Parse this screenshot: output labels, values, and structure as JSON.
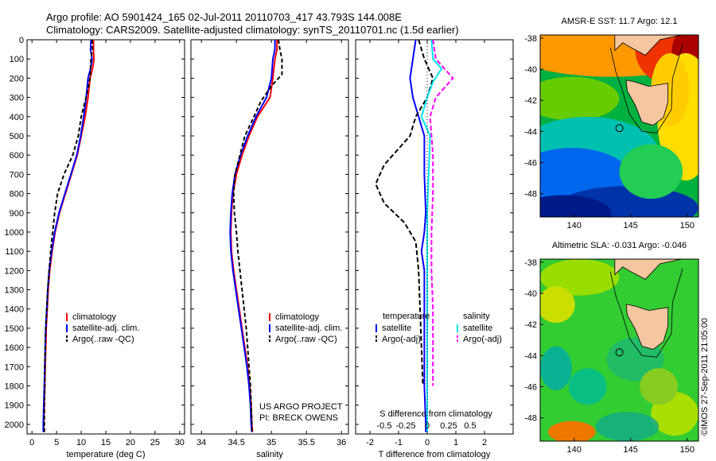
{
  "header": {
    "line1": "Argo profile: AO 5901424_165 02-Jul-2011 20110703_417 43.793S 144.008E",
    "line2": "Climatology: CARS2009. Satellite-adjusted climatology: synTS_20110701.nc (1.5d earlier)"
  },
  "credit": "©IMOS 27-Sep-2011 21:05:00",
  "colors": {
    "climatology": "#ff0000",
    "satellite": "#0000ff",
    "argo": "#000000",
    "salinity_satellite": "#00e5ee",
    "salinity_argo": "#ff00ff"
  },
  "chart_data": [
    {
      "type": "line",
      "id": "temperature",
      "xlabel": "temperature (deg C)",
      "ylabel": "",
      "xlim": [
        -1,
        31
      ],
      "xticks": [
        0,
        5,
        10,
        15,
        20,
        25,
        30
      ],
      "ylim": [
        2050,
        0
      ],
      "yticks": [
        0,
        100,
        200,
        300,
        400,
        500,
        600,
        700,
        800,
        900,
        1000,
        1100,
        1200,
        1300,
        1400,
        1500,
        1600,
        1700,
        1800,
        1900,
        2000
      ],
      "legend": [
        "climatology",
        "satellite-adj. clim.",
        "Argo(..raw -QC)"
      ],
      "series": [
        {
          "name": "climatology",
          "color": "#ff0000",
          "dash": "",
          "points": [
            [
              12.5,
              0
            ],
            [
              12.5,
              50
            ],
            [
              12.6,
              100
            ],
            [
              12.3,
              150
            ],
            [
              11.8,
              200
            ],
            [
              11.4,
              300
            ],
            [
              10.8,
              400
            ],
            [
              10.0,
              500
            ],
            [
              9.2,
              600
            ],
            [
              8.0,
              700
            ],
            [
              6.8,
              800
            ],
            [
              5.6,
              900
            ],
            [
              4.7,
              1000
            ],
            [
              4.1,
              1100
            ],
            [
              3.6,
              1200
            ],
            [
              3.3,
              1300
            ],
            [
              3.1,
              1400
            ],
            [
              2.9,
              1500
            ],
            [
              2.8,
              1600
            ],
            [
              2.7,
              1700
            ],
            [
              2.6,
              1800
            ],
            [
              2.5,
              1900
            ],
            [
              2.4,
              2000
            ],
            [
              2.4,
              2040
            ]
          ]
        },
        {
          "name": "satellite-adj. clim.",
          "color": "#0000ff",
          "dash": "",
          "points": [
            [
              12.0,
              0
            ],
            [
              11.9,
              50
            ],
            [
              12.2,
              100
            ],
            [
              11.9,
              150
            ],
            [
              11.4,
              200
            ],
            [
              11.0,
              300
            ],
            [
              10.5,
              400
            ],
            [
              9.9,
              500
            ],
            [
              9.1,
              600
            ],
            [
              7.9,
              700
            ],
            [
              6.7,
              800
            ],
            [
              5.5,
              900
            ],
            [
              4.6,
              1000
            ],
            [
              4.0,
              1100
            ],
            [
              3.5,
              1200
            ],
            [
              3.2,
              1300
            ],
            [
              3.0,
              1400
            ],
            [
              2.8,
              1500
            ],
            [
              2.7,
              1600
            ],
            [
              2.6,
              1700
            ],
            [
              2.5,
              1800
            ],
            [
              2.4,
              1900
            ],
            [
              2.3,
              2000
            ],
            [
              2.3,
              2040
            ]
          ]
        },
        {
          "name": "Argo(..raw -QC)",
          "color": "#000000",
          "dash": "5,3",
          "points": [
            [
              12.2,
              0
            ],
            [
              12.3,
              50
            ],
            [
              12.0,
              100
            ],
            [
              11.8,
              200
            ],
            [
              11.0,
              300
            ],
            [
              10.0,
              400
            ],
            [
              9.4,
              500
            ],
            [
              8.3,
              600
            ],
            [
              6.5,
              700
            ],
            [
              5.2,
              800
            ],
            [
              4.6,
              900
            ],
            [
              4.2,
              1000
            ],
            [
              3.8,
              1100
            ],
            [
              3.5,
              1200
            ],
            [
              3.2,
              1300
            ],
            [
              3.0,
              1400
            ],
            [
              2.8,
              1500
            ],
            [
              2.7,
              1600
            ],
            [
              2.6,
              1700
            ],
            [
              2.6,
              1800
            ],
            [
              2.5,
              1900
            ],
            [
              2.5,
              2000
            ],
            [
              2.5,
              2040
            ]
          ]
        }
      ]
    },
    {
      "type": "line",
      "id": "salinity",
      "xlabel": "salinity",
      "ylabel": "",
      "xlim": [
        33.85,
        36.1
      ],
      "xticks": [
        34,
        34.5,
        35,
        35.5,
        36
      ],
      "ylim": [
        2050,
        0
      ],
      "legend": [
        "climatology",
        "satellite-adj. clim.",
        "Argo(..raw -QC)"
      ],
      "annotation": [
        "US ARGO PROJECT",
        "PI: BRECK OWENS"
      ],
      "series": [
        {
          "name": "climatology",
          "color": "#ff0000",
          "dash": "",
          "points": [
            [
              35.08,
              0
            ],
            [
              35.08,
              50
            ],
            [
              35.05,
              100
            ],
            [
              35.02,
              200
            ],
            [
              34.98,
              300
            ],
            [
              34.8,
              400
            ],
            [
              34.68,
              500
            ],
            [
              34.58,
              600
            ],
            [
              34.5,
              700
            ],
            [
              34.45,
              800
            ],
            [
              34.43,
              900
            ],
            [
              34.42,
              1000
            ],
            [
              34.43,
              1100
            ],
            [
              34.46,
              1200
            ],
            [
              34.5,
              1300
            ],
            [
              34.54,
              1400
            ],
            [
              34.58,
              1500
            ],
            [
              34.62,
              1600
            ],
            [
              34.66,
              1700
            ],
            [
              34.69,
              1800
            ],
            [
              34.71,
              1900
            ],
            [
              34.72,
              2000
            ],
            [
              34.73,
              2040
            ]
          ]
        },
        {
          "name": "satellite-adj. clim.",
          "color": "#0000ff",
          "dash": "",
          "points": [
            [
              35.05,
              0
            ],
            [
              35.05,
              50
            ],
            [
              35.02,
              100
            ],
            [
              35.0,
              200
            ],
            [
              34.93,
              300
            ],
            [
              34.78,
              400
            ],
            [
              34.66,
              500
            ],
            [
              34.56,
              600
            ],
            [
              34.48,
              700
            ],
            [
              34.44,
              800
            ],
            [
              34.42,
              900
            ],
            [
              34.41,
              1000
            ],
            [
              34.42,
              1100
            ],
            [
              34.45,
              1200
            ],
            [
              34.49,
              1300
            ],
            [
              34.53,
              1400
            ],
            [
              34.57,
              1500
            ],
            [
              34.61,
              1600
            ],
            [
              34.65,
              1700
            ],
            [
              34.68,
              1800
            ],
            [
              34.7,
              1900
            ],
            [
              34.71,
              2000
            ],
            [
              34.72,
              2040
            ]
          ]
        },
        {
          "name": "Argo(..raw -QC)",
          "color": "#000000",
          "dash": "5,3",
          "points": [
            [
              35.1,
              0
            ],
            [
              35.12,
              50
            ],
            [
              35.15,
              100
            ],
            [
              35.15,
              180
            ],
            [
              35.0,
              240
            ],
            [
              34.85,
              320
            ],
            [
              34.75,
              400
            ],
            [
              34.62,
              500
            ],
            [
              34.55,
              600
            ],
            [
              34.48,
              700
            ],
            [
              34.46,
              800
            ],
            [
              34.47,
              900
            ],
            [
              34.5,
              1000
            ],
            [
              34.52,
              1100
            ],
            [
              34.55,
              1200
            ],
            [
              34.58,
              1300
            ],
            [
              34.61,
              1400
            ],
            [
              34.64,
              1500
            ],
            [
              34.66,
              1600
            ],
            [
              34.68,
              1700
            ],
            [
              34.7,
              1800
            ],
            [
              34.71,
              1900
            ],
            [
              34.72,
              2000
            ],
            [
              34.72,
              2040
            ]
          ]
        }
      ]
    },
    {
      "type": "line",
      "id": "difference",
      "xlabel": "T difference from climatology",
      "xlabel_top": "S difference from climatology",
      "xlim": [
        -2.5,
        3
      ],
      "xticks": [
        -2,
        -1,
        0,
        1,
        2
      ],
      "s_ticks": [
        "-0.5",
        "-0.25",
        "0",
        "0.25",
        "0.5"
      ],
      "ylim": [
        2050,
        0
      ],
      "legend_temperature": {
        "title": "temperature",
        "items": [
          "satellite",
          "Argo(-adj)"
        ]
      },
      "legend_salinity": {
        "title": "salinity",
        "items": [
          "satellite",
          "Argo(-adj)"
        ]
      },
      "series": [
        {
          "name": "temperature satellite",
          "color": "#0000ff",
          "dash": "",
          "points": [
            [
              -0.4,
              0
            ],
            [
              -0.5,
              100
            ],
            [
              -0.6,
              200
            ],
            [
              -0.5,
              300
            ],
            [
              -0.3,
              400
            ],
            [
              -0.1,
              500
            ],
            [
              -0.1,
              700
            ],
            [
              -0.05,
              900
            ],
            [
              -0.1,
              1000
            ],
            [
              -0.2,
              1100
            ],
            [
              -0.1,
              1200
            ],
            [
              -0.1,
              1400
            ],
            [
              -0.1,
              1600
            ],
            [
              -0.1,
              1800
            ],
            [
              -0.05,
              2000
            ],
            [
              -0.05,
              2040
            ]
          ]
        },
        {
          "name": "temperature Argo(-adj)",
          "color": "#000000",
          "dash": "6,3",
          "points": [
            [
              -0.3,
              0
            ],
            [
              -0.1,
              100
            ],
            [
              0.2,
              200
            ],
            [
              0.0,
              300
            ],
            [
              -0.4,
              400
            ],
            [
              -0.6,
              500
            ],
            [
              -1.5,
              650
            ],
            [
              -1.8,
              750
            ],
            [
              -1.5,
              850
            ],
            [
              -0.8,
              950
            ],
            [
              -0.4,
              1050
            ],
            [
              -0.3,
              1200
            ],
            [
              -0.25,
              1400
            ],
            [
              -0.2,
              1600
            ],
            [
              -0.15,
              1800
            ]
          ]
        },
        {
          "name": "salinity satellite",
          "color": "#00e5ee",
          "dash": "",
          "points": [
            [
              0.15,
              0
            ],
            [
              0.2,
              100
            ],
            [
              0.5,
              150
            ],
            [
              0.2,
              220
            ],
            [
              0.0,
              300
            ],
            [
              -0.2,
              400
            ],
            [
              0.1,
              500
            ],
            [
              0.05,
              700
            ],
            [
              0.0,
              900
            ],
            [
              0.0,
              1200
            ],
            [
              0.0,
              1500
            ],
            [
              0.0,
              1800
            ],
            [
              0.0,
              2000
            ],
            [
              0.0,
              2040
            ]
          ]
        },
        {
          "name": "salinity Argo(-adj)",
          "color": "#ff00ff",
          "dash": "6,3",
          "points": [
            [
              0.2,
              0
            ],
            [
              0.3,
              100
            ],
            [
              0.9,
              200
            ],
            [
              0.3,
              300
            ],
            [
              0.1,
              400
            ],
            [
              0.2,
              600
            ],
            [
              0.2,
              800
            ],
            [
              0.15,
              1000
            ],
            [
              0.15,
              1200
            ],
            [
              0.2,
              1400
            ],
            [
              0.2,
              1600
            ],
            [
              0.2,
              1800
            ]
          ]
        }
      ]
    },
    {
      "type": "heatmap",
      "id": "sst-map",
      "title": "AMSR-E SST: 11.7  Argo: 12.1",
      "xlim": [
        137,
        151
      ],
      "ylim": [
        -49.5,
        -37.8
      ],
      "xticks": [
        140,
        145,
        150
      ],
      "yticks": [
        -38,
        -40,
        -42,
        -44,
        -46,
        -48
      ],
      "marker": [
        144.008,
        -43.793
      ]
    },
    {
      "type": "heatmap",
      "id": "sla-map",
      "title": "Altimetric SLA: -0.031  Argo: -0.046",
      "xlim": [
        137,
        151
      ],
      "ylim": [
        -49.5,
        -37.8
      ],
      "xticks": [
        140,
        145,
        150
      ],
      "yticks": [
        -38,
        -40,
        -42,
        -44,
        -46,
        -48
      ],
      "marker": [
        144.008,
        -43.793
      ]
    }
  ]
}
